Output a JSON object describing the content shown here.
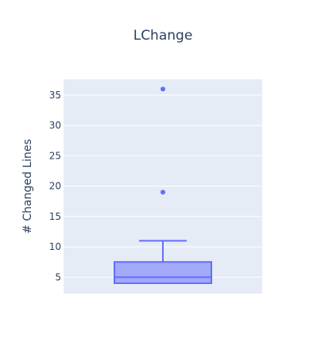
{
  "chart_data": {
    "type": "box",
    "title": "LChange",
    "xlabel": "",
    "ylabel": "# Changed Lines",
    "ylim": [
      2.3,
      37.6
    ],
    "y_ticks": [
      5,
      10,
      15,
      20,
      25,
      30,
      35
    ],
    "grid": true,
    "box": {
      "min": 4,
      "q1": 4,
      "median": 5,
      "q3": 7.5,
      "upper_whisker": 11,
      "outliers": [
        19,
        36
      ]
    },
    "colors": {
      "plot_bg": "#e5ecf6",
      "grid": "#ffffff",
      "box_line": "#636efa",
      "box_fill": "#a3a9f9",
      "text": "#2a3f5f"
    }
  }
}
